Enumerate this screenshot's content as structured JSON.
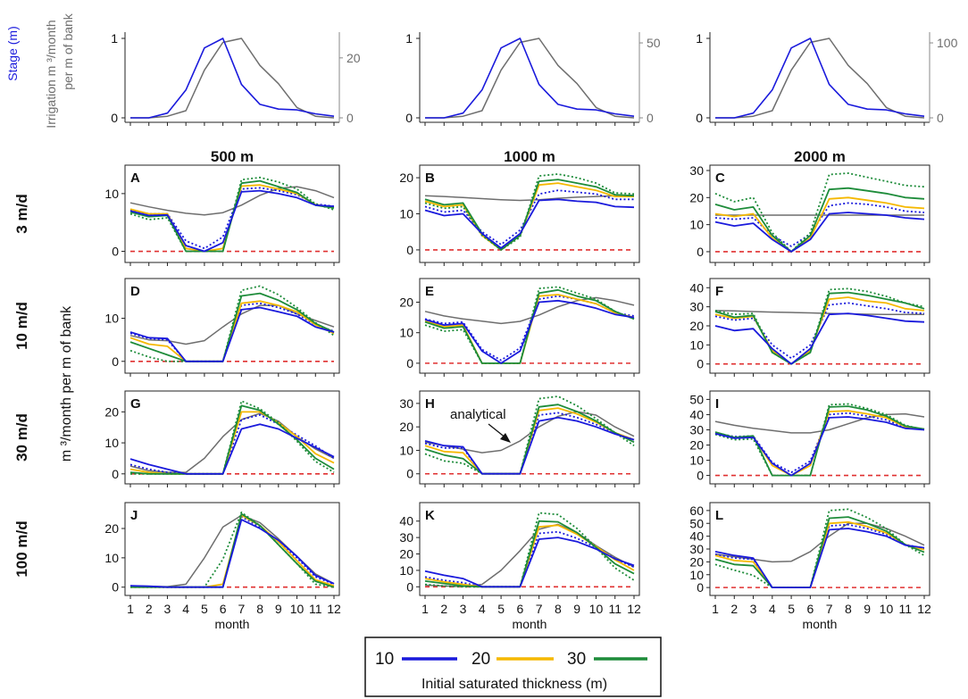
{
  "labels": {
    "stage": "Stage (m)",
    "irrigation_line1": "Irrigation m ³/month",
    "irrigation_line2": "per m of bank",
    "y_axis": "m ³/month per m of bank",
    "x_axis": "month",
    "analytical": "analytical",
    "col_titles": [
      "500 m",
      "1000 m",
      "2000 m"
    ],
    "row_titles": [
      "3 m/d",
      "10 m/d",
      "30 m/d",
      "100 m/d"
    ]
  },
  "legend": {
    "title": "Initial saturated thickness (m)",
    "entries": [
      {
        "label": "10",
        "color": "#1a1adc"
      },
      {
        "label": "20",
        "color": "#f5b800"
      },
      {
        "label": "30",
        "color": "#1e8c3a"
      }
    ]
  },
  "colors": {
    "stage": "#1a1adc",
    "irrigation": "#6e6e6e",
    "analytical": "#6e6e6e",
    "zero_line": "#e03030",
    "t10": "#1a1adc",
    "t20": "#f5b800",
    "t30": "#1e8c3a"
  },
  "chart_data": {
    "type": "line",
    "x": [
      1,
      2,
      3,
      4,
      5,
      6,
      7,
      8,
      9,
      10,
      11,
      12
    ],
    "x_ticks": [
      "1",
      "2",
      "3",
      "4",
      "5",
      "6",
      "7",
      "8",
      "9",
      "10",
      "11",
      "12"
    ],
    "top_panels": [
      {
        "stage": [
          0,
          0,
          0.06,
          0.35,
          0.88,
          1.0,
          0.42,
          0.17,
          0.11,
          0.1,
          0.05,
          0.02
        ],
        "irrigation": [
          0,
          0,
          0.02,
          0.09,
          0.6,
          0.95,
          1.0,
          0.66,
          0.43,
          0.13,
          0.02,
          0
        ],
        "left_ticks": [
          0,
          1
        ],
        "right_ylim": [
          0,
          26.5
        ],
        "right_ticks": [
          0,
          20
        ]
      },
      {
        "stage": [
          0,
          0,
          0.06,
          0.35,
          0.88,
          1.0,
          0.42,
          0.17,
          0.11,
          0.1,
          0.05,
          0.02
        ],
        "irrigation": [
          0,
          0,
          0.02,
          0.09,
          0.6,
          0.95,
          1.0,
          0.66,
          0.43,
          0.13,
          0.02,
          0
        ],
        "left_ticks": [
          0,
          1
        ],
        "right_ylim": [
          0,
          53
        ],
        "right_ticks": [
          0,
          50
        ]
      },
      {
        "stage": [
          0,
          0,
          0.06,
          0.35,
          0.88,
          1.0,
          0.42,
          0.17,
          0.11,
          0.1,
          0.05,
          0.02
        ],
        "irrigation": [
          0,
          0,
          0.02,
          0.09,
          0.6,
          0.95,
          1.0,
          0.66,
          0.43,
          0.13,
          0.02,
          0
        ],
        "left_ticks": [
          0,
          1
        ],
        "right_ylim": [
          0,
          106
        ],
        "right_ticks": [
          0,
          100
        ]
      }
    ],
    "panels": [
      {
        "label": "A",
        "ylim": [
          -1,
          14
        ],
        "yticks": [
          0,
          10
        ],
        "t10": [
          7,
          6.2,
          6.3,
          1,
          0,
          1.5,
          10.3,
          10.5,
          10,
          9.3,
          8,
          7.8
        ],
        "t10_dot": [
          7.2,
          6.5,
          6.5,
          1.8,
          0.5,
          2.5,
          10.8,
          11,
          10.5,
          9.8,
          8.2,
          7.8
        ],
        "t20": [
          7.3,
          6.5,
          6.5,
          0.5,
          0,
          0.5,
          11.3,
          11.5,
          10.8,
          10,
          8.1,
          7.6
        ],
        "t30": [
          6.8,
          6,
          6.2,
          0,
          0,
          0,
          11.8,
          12.2,
          11.2,
          10.2,
          8,
          7.5
        ],
        "t30_dot": [
          6.5,
          5.5,
          5.8,
          0,
          0,
          0,
          12.4,
          12.8,
          12,
          10.8,
          8.2,
          7.2
        ],
        "analytical": [
          8.4,
          7.7,
          7.1,
          6.6,
          6.3,
          6.7,
          8,
          9.7,
          10.9,
          11.2,
          10.5,
          9.3
        ]
      },
      {
        "label": "B",
        "ylim": [
          -2,
          22
        ],
        "yticks": [
          0,
          10,
          20
        ],
        "t10": [
          11,
          9.5,
          10,
          4.5,
          0.5,
          4.5,
          13.7,
          14,
          13.5,
          13.2,
          12,
          11.8
        ],
        "t10_dot": [
          12,
          10.5,
          11,
          5,
          1.5,
          5.5,
          15.5,
          16.5,
          16,
          15.5,
          14,
          14
        ],
        "t20": [
          13.5,
          12,
          12.5,
          4,
          0,
          4,
          18,
          18.5,
          17.5,
          16.5,
          14.8,
          14.8
        ],
        "t30": [
          14,
          12.5,
          13,
          4.5,
          0,
          4,
          19,
          19.5,
          18.5,
          17.5,
          15.3,
          15
        ],
        "t30_dot": [
          13,
          11.5,
          12,
          4,
          0,
          3.5,
          20.5,
          21,
          20,
          18.5,
          15.8,
          15.5
        ],
        "analytical": [
          15,
          14.8,
          14.5,
          14.2,
          13.9,
          13.7,
          13.9,
          14.3,
          14.6,
          14.8,
          15,
          15.2
        ]
      },
      {
        "label": "C",
        "ylim": [
          -2,
          30
        ],
        "yticks": [
          0,
          10,
          20,
          30
        ],
        "t10": [
          11,
          9.5,
          10.5,
          4.5,
          0,
          4.5,
          14,
          14.5,
          14,
          13.5,
          12.5,
          12
        ],
        "t10_dot": [
          12.5,
          12,
          12.5,
          6,
          2,
          6.5,
          17,
          18,
          17.5,
          16.5,
          15,
          14.5
        ],
        "t20": [
          14,
          13,
          14,
          5,
          0,
          5,
          19.5,
          20,
          19,
          18,
          16.5,
          16
        ],
        "t30": [
          17.5,
          15.5,
          16.5,
          6,
          0,
          6,
          23,
          23.5,
          22.5,
          21.5,
          20,
          19.5
        ],
        "t30_dot": [
          21.5,
          18.5,
          20,
          7,
          0,
          7,
          28.5,
          29,
          27.5,
          26,
          24.5,
          24
        ],
        "analytical": [
          13.5,
          13.5,
          13.5,
          13.5,
          13.5,
          13.5,
          13.5,
          13.5,
          13.5,
          13.5,
          13.5,
          13.5
        ]
      },
      {
        "label": "D",
        "ylim": [
          -1.5,
          18
        ],
        "yticks": [
          0,
          10
        ],
        "t10": [
          6.8,
          5.5,
          5.3,
          0,
          0,
          0,
          12,
          12.5,
          11.5,
          10.5,
          8,
          6.8
        ],
        "t10_dot": [
          6.5,
          5.3,
          5,
          0,
          0,
          0,
          13,
          13.5,
          12.5,
          11,
          8.5,
          7
        ],
        "t20": [
          5.5,
          4,
          3.5,
          0,
          0,
          0,
          13.5,
          14,
          13,
          11.5,
          8.5,
          6.5
        ],
        "t30": [
          4.5,
          3,
          1.5,
          0,
          0,
          0,
          15.2,
          15.8,
          14.2,
          12,
          8.8,
          6.8
        ],
        "t30_dot": [
          2.5,
          1,
          0,
          0,
          0,
          0,
          16.5,
          17.5,
          15.5,
          12.5,
          9,
          6
        ],
        "analytical": [
          6,
          5,
          4.8,
          4,
          4.8,
          8,
          11,
          13,
          13,
          11,
          9.5,
          8
        ]
      },
      {
        "label": "E",
        "ylim": [
          -1.5,
          26
        ],
        "yticks": [
          0,
          10,
          20
        ],
        "t10": [
          14.3,
          12.5,
          13,
          4,
          0,
          4,
          20,
          20.5,
          19.5,
          18,
          16,
          15
        ],
        "t10_dot": [
          14.5,
          13,
          13.5,
          4.5,
          1,
          5,
          21,
          22,
          21,
          19.5,
          16.5,
          15.5
        ],
        "t20": [
          13.8,
          12,
          12.5,
          0,
          0,
          0,
          22,
          22.5,
          21,
          19.5,
          16.5,
          15
        ],
        "t30": [
          13.5,
          11.5,
          12,
          0,
          0,
          0,
          23,
          24,
          22,
          20.5,
          17,
          14.5
        ],
        "t30_dot": [
          12.5,
          10.5,
          11,
          0,
          0,
          0,
          24.5,
          25,
          23,
          21,
          17,
          14.5
        ],
        "analytical": [
          17,
          15.5,
          14.5,
          13.8,
          13,
          13.7,
          15.8,
          18.5,
          20.5,
          21.5,
          20.5,
          19
        ]
      },
      {
        "label": "F",
        "ylim": [
          -2,
          42
        ],
        "yticks": [
          0,
          10,
          20,
          30,
          40
        ],
        "t10": [
          20,
          17.5,
          18.5,
          8,
          0,
          8,
          26,
          26.5,
          25.5,
          24,
          22.5,
          22
        ],
        "t10_dot": [
          25,
          23,
          24,
          10,
          3,
          10,
          31,
          32,
          30.5,
          29,
          27,
          26.5
        ],
        "t20": [
          26,
          24,
          25,
          7,
          0,
          7,
          34,
          35,
          33,
          32,
          29,
          28
        ],
        "t30": [
          27.5,
          24.5,
          25.5,
          6,
          0,
          6,
          37,
          37.5,
          36,
          34,
          32,
          29
        ],
        "t30_dot": [
          28,
          26,
          26.5,
          6,
          0,
          6,
          39,
          39.5,
          38,
          35.5,
          32,
          30
        ],
        "analytical": [
          28,
          27.8,
          27.5,
          27.2,
          27,
          26.8,
          26.5,
          26.3,
          26.1,
          26,
          26,
          26
        ]
      },
      {
        "label": "G",
        "ylim": [
          -1.5,
          25
        ],
        "yticks": [
          0,
          10,
          20
        ],
        "t10": [
          4.8,
          3,
          1.5,
          0,
          0,
          0,
          14.5,
          16,
          14.5,
          11.5,
          8.5,
          5.5
        ],
        "t10_dot": [
          3,
          1.5,
          0.5,
          0,
          0,
          0,
          17.5,
          19,
          16,
          12.5,
          9,
          5
        ],
        "t20": [
          1.5,
          0.5,
          0,
          0,
          0,
          0,
          20,
          20,
          16.5,
          12,
          6.5,
          3.5
        ],
        "t30": [
          0.5,
          0,
          0,
          0,
          0,
          0,
          22,
          20.5,
          16,
          11,
          5,
          1.5
        ],
        "t30_dot": [
          0,
          0,
          0,
          0,
          0,
          0,
          23.5,
          21,
          16.5,
          10.5,
          4,
          0.5
        ],
        "analytical": [
          2.5,
          1,
          0.5,
          0.5,
          5,
          12,
          17.5,
          19.5,
          17,
          12,
          8,
          5
        ]
      },
      {
        "label": "H",
        "ylim": [
          -2,
          33
        ],
        "yticks": [
          0,
          10,
          20,
          30
        ],
        "t10": [
          14,
          12,
          11.5,
          0,
          0,
          0,
          22.5,
          24,
          22.5,
          20,
          17,
          14.5
        ],
        "t10_dot": [
          13,
          11,
          11,
          0,
          0,
          0,
          25,
          26,
          24,
          21,
          17.5,
          14.5
        ],
        "t20": [
          12,
          9.5,
          9,
          0,
          0,
          0,
          27,
          28,
          25.5,
          22,
          17.5,
          14.5
        ],
        "t30": [
          10.5,
          8,
          6.5,
          0,
          0,
          0,
          28.5,
          29.5,
          26.5,
          22.5,
          17.5,
          13.5
        ],
        "t30_dot": [
          8.5,
          5.5,
          4.5,
          0,
          0,
          0,
          32,
          33,
          29,
          23.5,
          17.5,
          12
        ],
        "analytical": [
          13.5,
          12,
          10.5,
          9,
          10,
          14,
          20,
          24.5,
          26.5,
          25,
          20,
          16
        ]
      },
      {
        "label": "I",
        "ylim": [
          -2,
          52
        ],
        "yticks": [
          0,
          10,
          20,
          30,
          40,
          50
        ],
        "t10": [
          27.5,
          24.5,
          25,
          8,
          0,
          8,
          38,
          38.5,
          37,
          35,
          31,
          30
        ],
        "t10_dot": [
          28,
          25.5,
          26,
          8.5,
          2,
          9.5,
          40,
          41,
          39,
          36.5,
          31.5,
          30.5
        ],
        "t20": [
          28,
          25,
          25.5,
          6.5,
          0,
          6.5,
          42,
          42.5,
          40.5,
          38,
          32,
          30.5
        ],
        "t30": [
          28.5,
          25,
          26,
          0,
          0,
          0,
          45,
          45.5,
          43,
          39,
          32.5,
          30.5
        ],
        "t30_dot": [
          27,
          23.5,
          24,
          0,
          0,
          0,
          46.5,
          47,
          44,
          40,
          33,
          30
        ],
        "analytical": [
          35.5,
          33,
          31,
          29.5,
          28,
          28,
          30,
          34,
          38,
          40,
          40.5,
          38.5
        ]
      },
      {
        "label": "J",
        "ylim": [
          -1,
          27
        ],
        "yticks": [
          0,
          10,
          20
        ],
        "t10": [
          0.5,
          0.3,
          0,
          0,
          0,
          0,
          23,
          20,
          16,
          10.5,
          4,
          1.2
        ],
        "t10_dot": [
          0.2,
          0,
          0,
          0,
          0,
          0,
          24,
          20.5,
          15.5,
          10,
          3.5,
          1
        ],
        "t20": [
          0,
          0,
          0,
          0,
          0,
          1,
          24.5,
          21,
          15.5,
          9,
          2.5,
          0.5
        ],
        "t30": [
          0,
          0,
          0,
          0,
          0,
          0,
          25,
          21,
          14.5,
          8,
          2,
          0
        ],
        "t30_dot": [
          0,
          0,
          0,
          0,
          0,
          9.5,
          25.5,
          21,
          14.5,
          8,
          1,
          0
        ],
        "analytical": [
          0.5,
          0.3,
          0.2,
          1,
          10,
          20.5,
          24.5,
          22,
          16.5,
          10.5,
          4.5,
          1.2
        ]
      },
      {
        "label": "K",
        "ylim": [
          -2,
          48
        ],
        "yticks": [
          0,
          10,
          20,
          30,
          40
        ],
        "t10": [
          9.5,
          7,
          5,
          0,
          0,
          0,
          29,
          30,
          27.5,
          23,
          17,
          13
        ],
        "t10_dot": [
          6,
          4,
          2.5,
          0,
          0,
          0,
          32.5,
          33.5,
          29.5,
          24,
          17,
          12
        ],
        "t20": [
          5,
          3,
          1.5,
          0,
          0,
          0,
          36.5,
          37.5,
          32,
          24.5,
          16.5,
          10
        ],
        "t30": [
          3.5,
          2,
          0.5,
          0,
          0,
          0,
          40,
          39.5,
          33,
          24,
          14,
          8
        ],
        "t30_dot": [
          1.5,
          0.5,
          0,
          0,
          0,
          0,
          45,
          44,
          35.5,
          24,
          11.5,
          4
        ],
        "analytical": [
          1,
          0.5,
          0.2,
          1.5,
          10,
          22,
          35,
          38,
          33,
          25,
          18,
          12
        ]
      },
      {
        "label": "L",
        "ylim": [
          -2,
          62
        ],
        "yticks": [
          0,
          10,
          20,
          30,
          40,
          50,
          60
        ],
        "t10": [
          28,
          25,
          23,
          0,
          0,
          0,
          45,
          46,
          43.5,
          40,
          33,
          31
        ],
        "t10_dot": [
          26,
          23,
          22,
          0,
          0,
          0,
          48,
          49,
          46,
          41.5,
          33.5,
          30.5
        ],
        "t20": [
          25,
          21,
          20,
          0,
          0,
          0,
          50,
          51,
          47.5,
          42.5,
          33.5,
          29.5
        ],
        "t30": [
          22,
          18,
          17,
          0,
          0,
          0,
          54,
          55,
          50,
          44,
          33.5,
          27.5
        ],
        "t30_dot": [
          18,
          13.5,
          9.5,
          0,
          0,
          0,
          60,
          61,
          54.5,
          46,
          33.5,
          25
        ],
        "analytical": [
          26,
          24,
          22,
          20,
          20.5,
          28,
          40,
          50,
          50,
          46,
          40,
          33
        ]
      }
    ]
  }
}
